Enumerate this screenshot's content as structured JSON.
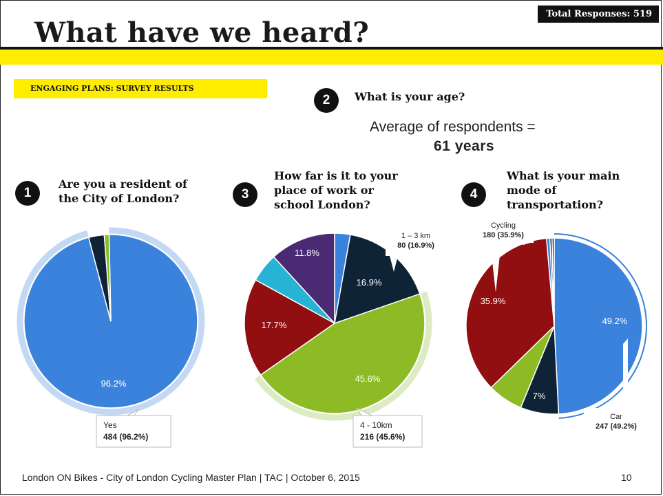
{
  "header": {
    "title": "What have we heard?",
    "total_responses": "Total Responses: 519",
    "section_label": "ENGAGING PLANS: SURVEY RESULTS"
  },
  "questions": {
    "q1": {
      "number": "1",
      "line1": "Are you a resident of",
      "line2": "the City of London?"
    },
    "q2": {
      "number": "2",
      "text": "What is your age?",
      "avg_label": "Average of respondents =",
      "avg_value": "61 years"
    },
    "q3": {
      "number": "3",
      "line1": "How far is it to your",
      "line2": "place of work or",
      "line3": "school London?"
    },
    "q4": {
      "number": "4",
      "line1": "What is your main",
      "line2": "mode of",
      "line3": "transportation?"
    }
  },
  "footer": {
    "text": "London ON Bikes - City of London Cycling Master Plan | TAC | October 6, 2015",
    "page": "10"
  },
  "colors": {
    "blue": "#3a82db",
    "navy": "#0f2336",
    "green": "#8cbb25",
    "red": "#910f11",
    "cyan": "#27b3d3",
    "purple": "#4a2a72",
    "yellow": "#ffed00"
  },
  "chart_data": [
    {
      "type": "pie",
      "title": "Are you a resident of the City of London?",
      "slices": [
        {
          "value": 96.2,
          "color": "#3a82db",
          "label": "96.2%"
        },
        {
          "value": 2.9,
          "color": "#0f2336",
          "label": ""
        },
        {
          "value": 0.9,
          "color": "#8cbb25",
          "label": ""
        }
      ],
      "tooltip": {
        "name": "Yes",
        "value": "484 (96.2%)"
      }
    },
    {
      "type": "pie",
      "title": "How far is it to your place of work or school London?",
      "slices": [
        {
          "value": 2.8,
          "color": "#3a82db",
          "label": ""
        },
        {
          "value": 16.9,
          "color": "#0f2336",
          "label": "16.9%"
        },
        {
          "value": 45.6,
          "color": "#8cbb25",
          "label": "45.6%"
        },
        {
          "value": 17.7,
          "color": "#910f11",
          "label": "17.7%"
        },
        {
          "value": 5.2,
          "color": "#27b3d3",
          "label": ""
        },
        {
          "value": 11.8,
          "color": "#4a2a72",
          "label": "11.8%"
        }
      ],
      "tooltips": [
        {
          "name": "1 – 3 km",
          "value": "80 (16.9%)"
        },
        {
          "name": "4 - 10km",
          "value": "216 (45.6%)"
        }
      ]
    },
    {
      "type": "pie",
      "title": "What is your main mode of transportation?",
      "slices": [
        {
          "value": 49.2,
          "color": "#3a82db",
          "label": "49.2%"
        },
        {
          "value": 7.0,
          "color": "#0f2336",
          "label": "7%"
        },
        {
          "value": 6.5,
          "color": "#8cbb25",
          "label": ""
        },
        {
          "value": 35.9,
          "color": "#910f11",
          "label": "35.9%"
        },
        {
          "value": 0.6,
          "color": "#3a82db",
          "label": ""
        },
        {
          "value": 0.4,
          "color": "#0f2336",
          "label": ""
        },
        {
          "value": 0.4,
          "color": "#4a2a72",
          "label": ""
        }
      ],
      "tooltips": [
        {
          "name": "Cycling",
          "value": "180 (35.9%)"
        },
        {
          "name": "Car",
          "value": "247 (49.2%)"
        }
      ]
    }
  ]
}
